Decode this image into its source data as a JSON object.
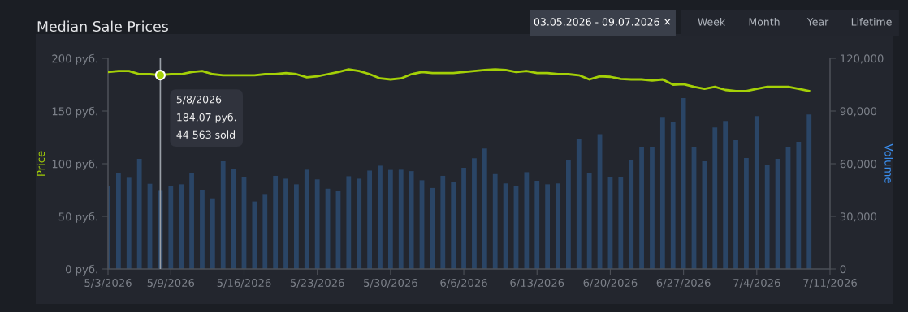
{
  "chart_data": {
    "type": "bar",
    "title": "Median Sale Prices",
    "ylabel": "Price",
    "y2label": "Volume",
    "x": [
      "2026-05-03",
      "2026-05-04",
      "2026-05-05",
      "2026-05-06",
      "2026-05-07",
      "2026-05-08",
      "2026-05-09",
      "2026-05-10",
      "2026-05-11",
      "2026-05-12",
      "2026-05-13",
      "2026-05-14",
      "2026-05-15",
      "2026-05-16",
      "2026-05-17",
      "2026-05-18",
      "2026-05-19",
      "2026-05-20",
      "2026-05-21",
      "2026-05-22",
      "2026-05-23",
      "2026-05-24",
      "2026-05-25",
      "2026-05-26",
      "2026-05-27",
      "2026-05-28",
      "2026-05-29",
      "2026-05-30",
      "2026-05-31",
      "2026-06-01",
      "2026-06-02",
      "2026-06-03",
      "2026-06-04",
      "2026-06-05",
      "2026-06-06",
      "2026-06-07",
      "2026-06-08",
      "2026-06-09",
      "2026-06-10",
      "2026-06-11",
      "2026-06-12",
      "2026-06-13",
      "2026-06-14",
      "2026-06-15",
      "2026-06-16",
      "2026-06-17",
      "2026-06-18",
      "2026-06-19",
      "2026-06-20",
      "2026-06-21",
      "2026-06-22",
      "2026-06-23",
      "2026-06-24",
      "2026-06-25",
      "2026-06-26",
      "2026-06-27",
      "2026-06-28",
      "2026-06-29",
      "2026-06-30",
      "2026-07-01",
      "2026-07-02",
      "2026-07-03",
      "2026-07-04",
      "2026-07-05",
      "2026-07-06",
      "2026-07-07",
      "2026-07-08",
      "2026-07-09"
    ],
    "series": [
      {
        "axis": "y2",
        "color": "#2a4566",
        "values": [
          47500,
          54800,
          52000,
          62800,
          48600,
          44563,
          47400,
          48300,
          54800,
          44800,
          40300,
          61400,
          56900,
          52300,
          38500,
          42300,
          53100,
          51500,
          48300,
          56600,
          51100,
          45800,
          44300,
          52900,
          51500,
          56100,
          58900,
          56500,
          56600,
          55800,
          50600,
          46200,
          53100,
          49400,
          57700,
          63100,
          68600,
          54100,
          48800,
          47100,
          55200,
          50300,
          48300,
          48800,
          62200,
          74000,
          54500,
          76800,
          52300,
          52300,
          61800,
          69700,
          69500,
          86600,
          83800,
          97400,
          69500,
          61400,
          80600,
          84300,
          73400,
          63200,
          87100,
          59400,
          62800,
          69500,
          72500,
          88000
        ]
      },
      {
        "type": "line",
        "color": "#a4d007",
        "values": [
          187,
          188,
          188,
          185,
          185,
          184.07,
          185,
          185,
          187,
          188,
          185,
          184,
          184,
          184,
          184,
          185,
          185,
          186,
          185,
          182,
          183,
          185,
          187,
          189.5,
          188,
          185,
          181,
          180,
          181,
          185,
          187,
          186,
          186,
          186,
          187,
          188,
          189,
          189.5,
          189,
          187,
          188,
          186,
          186,
          185,
          185,
          184,
          180,
          183,
          182.5,
          180.5,
          180,
          180,
          179,
          180,
          175,
          175.5,
          173,
          171,
          173,
          170,
          169,
          169,
          171,
          173,
          173,
          173,
          171,
          169
        ]
      }
    ],
    "xlim": [
      "2026-05-03",
      "2026-07-11"
    ],
    "xticks": [
      {
        "value": "2026-05-03",
        "label": "5/3/2026"
      },
      {
        "value": "2026-05-09",
        "label": "5/9/2026"
      },
      {
        "value": "2026-05-16",
        "label": "5/16/2026"
      },
      {
        "value": "2026-05-23",
        "label": "5/23/2026"
      },
      {
        "value": "2026-05-30",
        "label": "5/30/2026"
      },
      {
        "value": "2026-06-06",
        "label": "6/6/2026"
      },
      {
        "value": "2026-06-13",
        "label": "6/13/2026"
      },
      {
        "value": "2026-06-20",
        "label": "6/20/2026"
      },
      {
        "value": "2026-06-27",
        "label": "6/27/2026"
      },
      {
        "value": "2026-07-04",
        "label": "7/4/2026"
      },
      {
        "value": "2026-07-11",
        "label": "7/11/2026"
      }
    ],
    "ylim": [
      0,
      200
    ],
    "yticks": [
      {
        "value": 0,
        "label": "0 руб."
      },
      {
        "value": 50,
        "label": "50 руб."
      },
      {
        "value": 100,
        "label": "100 руб."
      },
      {
        "value": 150,
        "label": "150 руб."
      },
      {
        "value": 200,
        "label": "200 руб."
      }
    ],
    "y2lim": [
      0,
      120000
    ],
    "y2ticks": [
      {
        "value": 0,
        "label": "0"
      },
      {
        "value": 30000,
        "label": "30,000"
      },
      {
        "value": 60000,
        "label": "60,000"
      },
      {
        "value": 90000,
        "label": "90,000"
      },
      {
        "value": 120000,
        "label": "120,000"
      }
    ],
    "ref_lines": [
      {
        "axis": "x",
        "value": "2026-05-08",
        "color": "#9aa0a8"
      }
    ],
    "annotations": [
      {
        "text": "5/8/2026\n184,07 руб.\n44 563 sold",
        "x": "2026-05-08",
        "y": 184.07
      },
      "03.05.2026 - 09.07.2026 ✕",
      "Week",
      "Month",
      "Year",
      "Lifetime"
    ],
    "grid": false,
    "legend": false
  }
}
